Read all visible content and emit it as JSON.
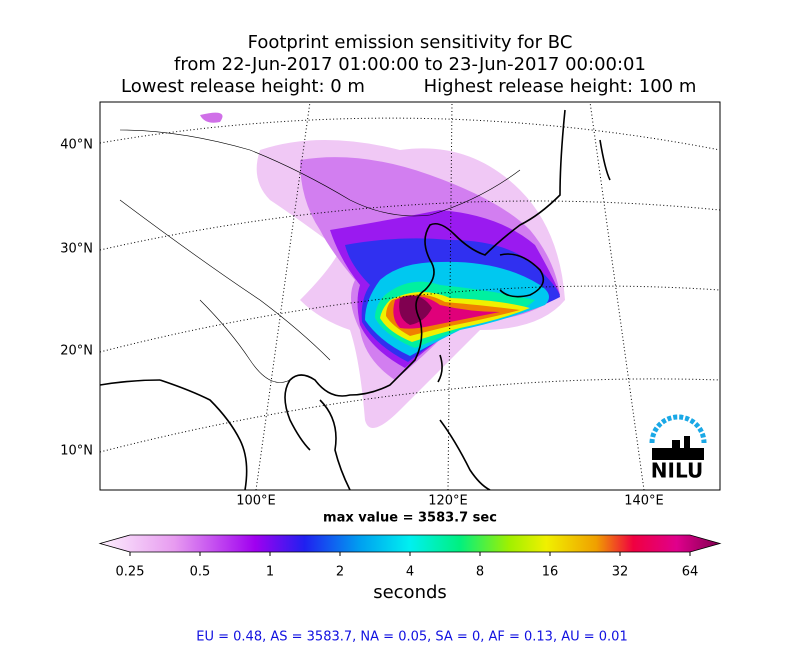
{
  "header": {
    "title_lines": [
      "Footprint emission sensitivity for BC",
      "from 22-Jun-2017 01:00:00 to 23-Jun-2017 00:00:01"
    ],
    "lowest_release": "Lowest release height: 0 m",
    "highest_release": "Highest release height: 100 m"
  },
  "map": {
    "lat_labels": [
      "40°N",
      "30°N",
      "20°N",
      "10°N"
    ],
    "lon_labels": [
      "100°E",
      "120°E",
      "140°E"
    ],
    "max_value": "max value = 3583.7 sec",
    "logo": "NILU"
  },
  "colorbar": {
    "range": [
      0.25,
      64
    ],
    "log": true,
    "ticks": [
      0.25,
      0.5,
      1,
      2,
      4,
      8,
      16,
      32,
      64
    ],
    "label": "seconds"
  },
  "footer": {
    "stats": "EU = 0.48,  AS = 3583.7,  NA = 0.05,  SA = 0,  AF = 0.13,  AU = 0.01"
  }
}
